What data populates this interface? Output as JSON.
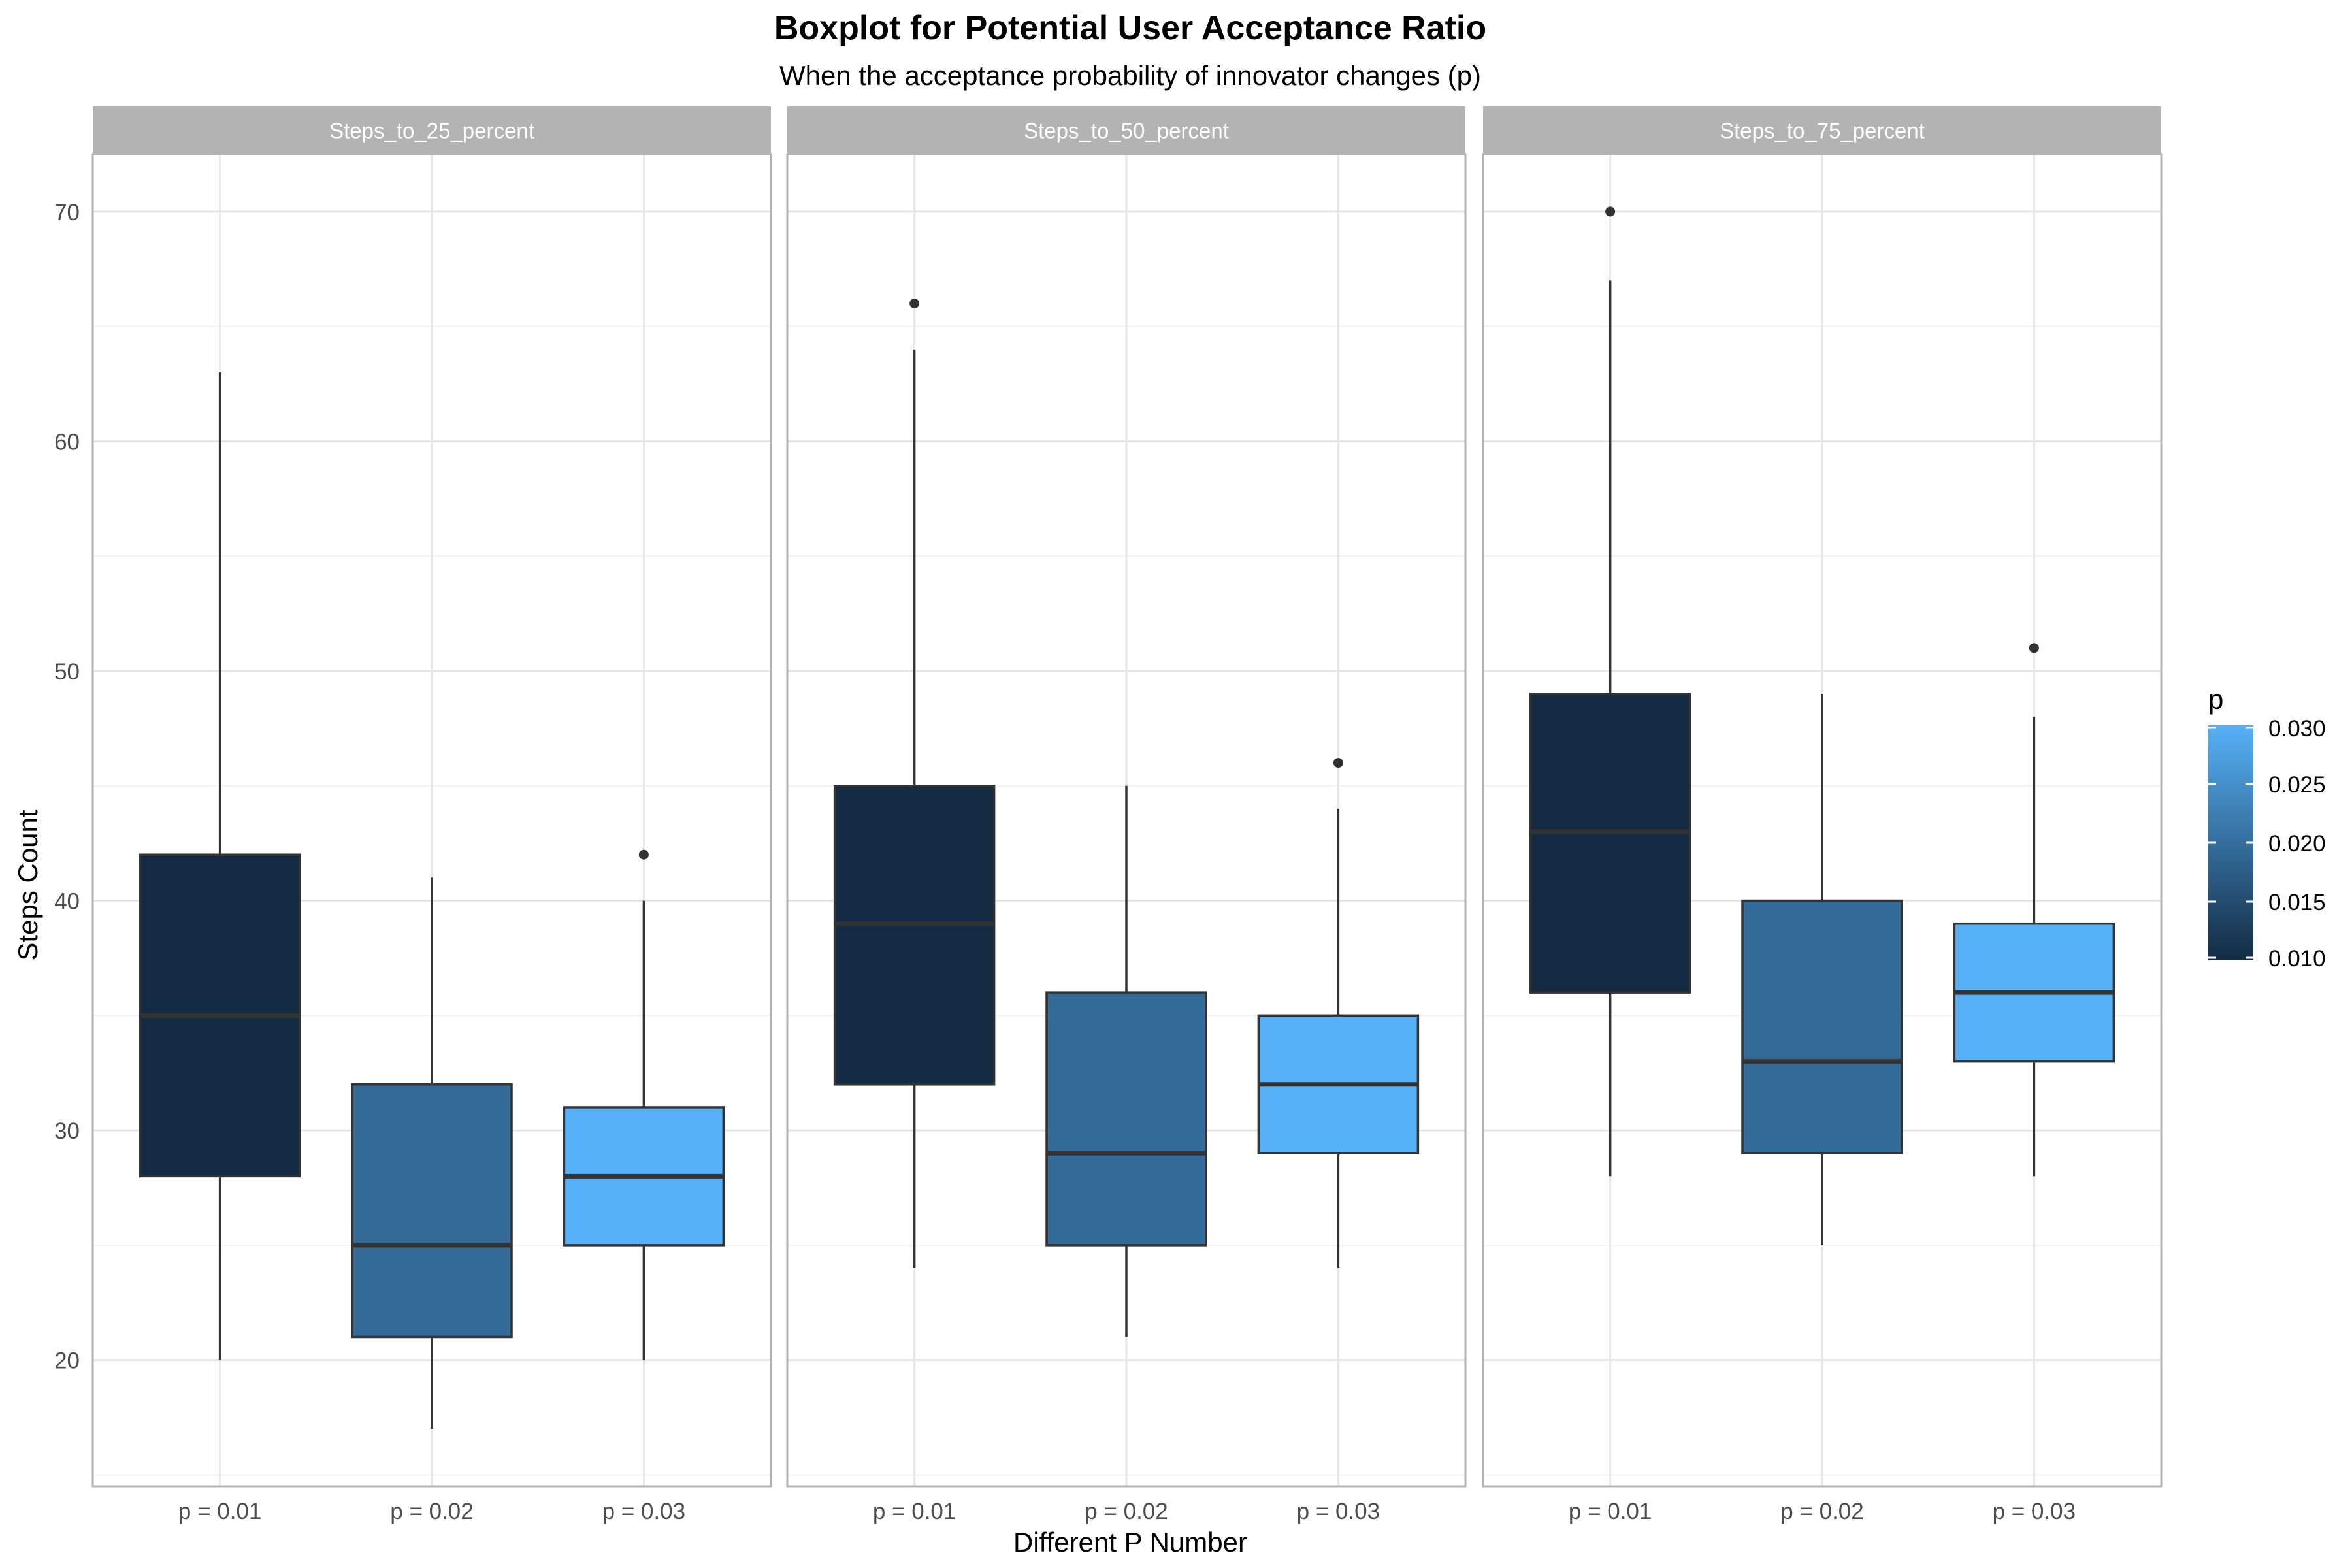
{
  "chart_data": {
    "type": "boxplot",
    "title": "Boxplot for Potential User Acceptance Ratio",
    "subtitle": "When the acceptance probability of innovator changes (p)",
    "xlabel": "Different P Number",
    "ylabel": "Steps Count",
    "ylim": [
      14.5,
      72.5
    ],
    "y_ticks": [
      20,
      30,
      40,
      50,
      60,
      70
    ],
    "y_tick_labels": [
      "20",
      "30",
      "40",
      "50",
      "60",
      "70"
    ],
    "categories": [
      "p = 0.01",
      "p = 0.02",
      "p = 0.03"
    ],
    "grid": true,
    "colors": {
      "p = 0.01": "#132B43",
      "p = 0.02": "#336A98",
      "p = 0.03": "#56B1F7",
      "strip_bg": "#B3B3B3",
      "outline": "#333333",
      "median": "#333333",
      "grid": "#E6E6E6",
      "panel_border": "#B3B3B3"
    },
    "facets": [
      {
        "label": "Steps_to_25_percent",
        "boxes": [
          {
            "category": "p = 0.01",
            "p": 0.01,
            "whisker_low": 20,
            "q1": 28,
            "median": 35,
            "q3": 42,
            "whisker_high": 63,
            "outliers": []
          },
          {
            "category": "p = 0.02",
            "p": 0.02,
            "whisker_low": 17,
            "q1": 21,
            "median": 25,
            "q3": 32,
            "whisker_high": 41,
            "outliers": []
          },
          {
            "category": "p = 0.03",
            "p": 0.03,
            "whisker_low": 20,
            "q1": 25,
            "median": 28,
            "q3": 31,
            "whisker_high": 40,
            "outliers": [
              42
            ]
          }
        ]
      },
      {
        "label": "Steps_to_50_percent",
        "boxes": [
          {
            "category": "p = 0.01",
            "p": 0.01,
            "whisker_low": 24,
            "q1": 32,
            "median": 39,
            "q3": 45,
            "whisker_high": 64,
            "outliers": [
              66
            ]
          },
          {
            "category": "p = 0.02",
            "p": 0.02,
            "whisker_low": 21,
            "q1": 25,
            "median": 29,
            "q3": 36,
            "whisker_high": 45,
            "outliers": []
          },
          {
            "category": "p = 0.03",
            "p": 0.03,
            "whisker_low": 24,
            "q1": 29,
            "median": 32,
            "q3": 35,
            "whisker_high": 44,
            "outliers": [
              46
            ]
          }
        ]
      },
      {
        "label": "Steps_to_75_percent",
        "boxes": [
          {
            "category": "p = 0.01",
            "p": 0.01,
            "whisker_low": 28,
            "q1": 36,
            "median": 43,
            "q3": 49,
            "whisker_high": 67,
            "outliers": [
              70
            ]
          },
          {
            "category": "p = 0.02",
            "p": 0.02,
            "whisker_low": 25,
            "q1": 29,
            "median": 33,
            "q3": 40,
            "whisker_high": 49,
            "outliers": []
          },
          {
            "category": "p = 0.03",
            "p": 0.03,
            "whisker_low": 28,
            "q1": 33,
            "median": 36,
            "q3": 39,
            "whisker_high": 48,
            "outliers": [
              51
            ]
          }
        ]
      }
    ],
    "legend": {
      "title": "p",
      "position": "right",
      "type": "colorbar",
      "range": [
        0.01,
        0.03
      ],
      "gradient": [
        "#132B43",
        "#56B1F7"
      ],
      "breaks": [
        0.01,
        0.015,
        0.02,
        0.025,
        0.03
      ],
      "break_labels": [
        "0.010",
        "0.015",
        "0.020",
        "0.025",
        "0.030"
      ]
    }
  }
}
